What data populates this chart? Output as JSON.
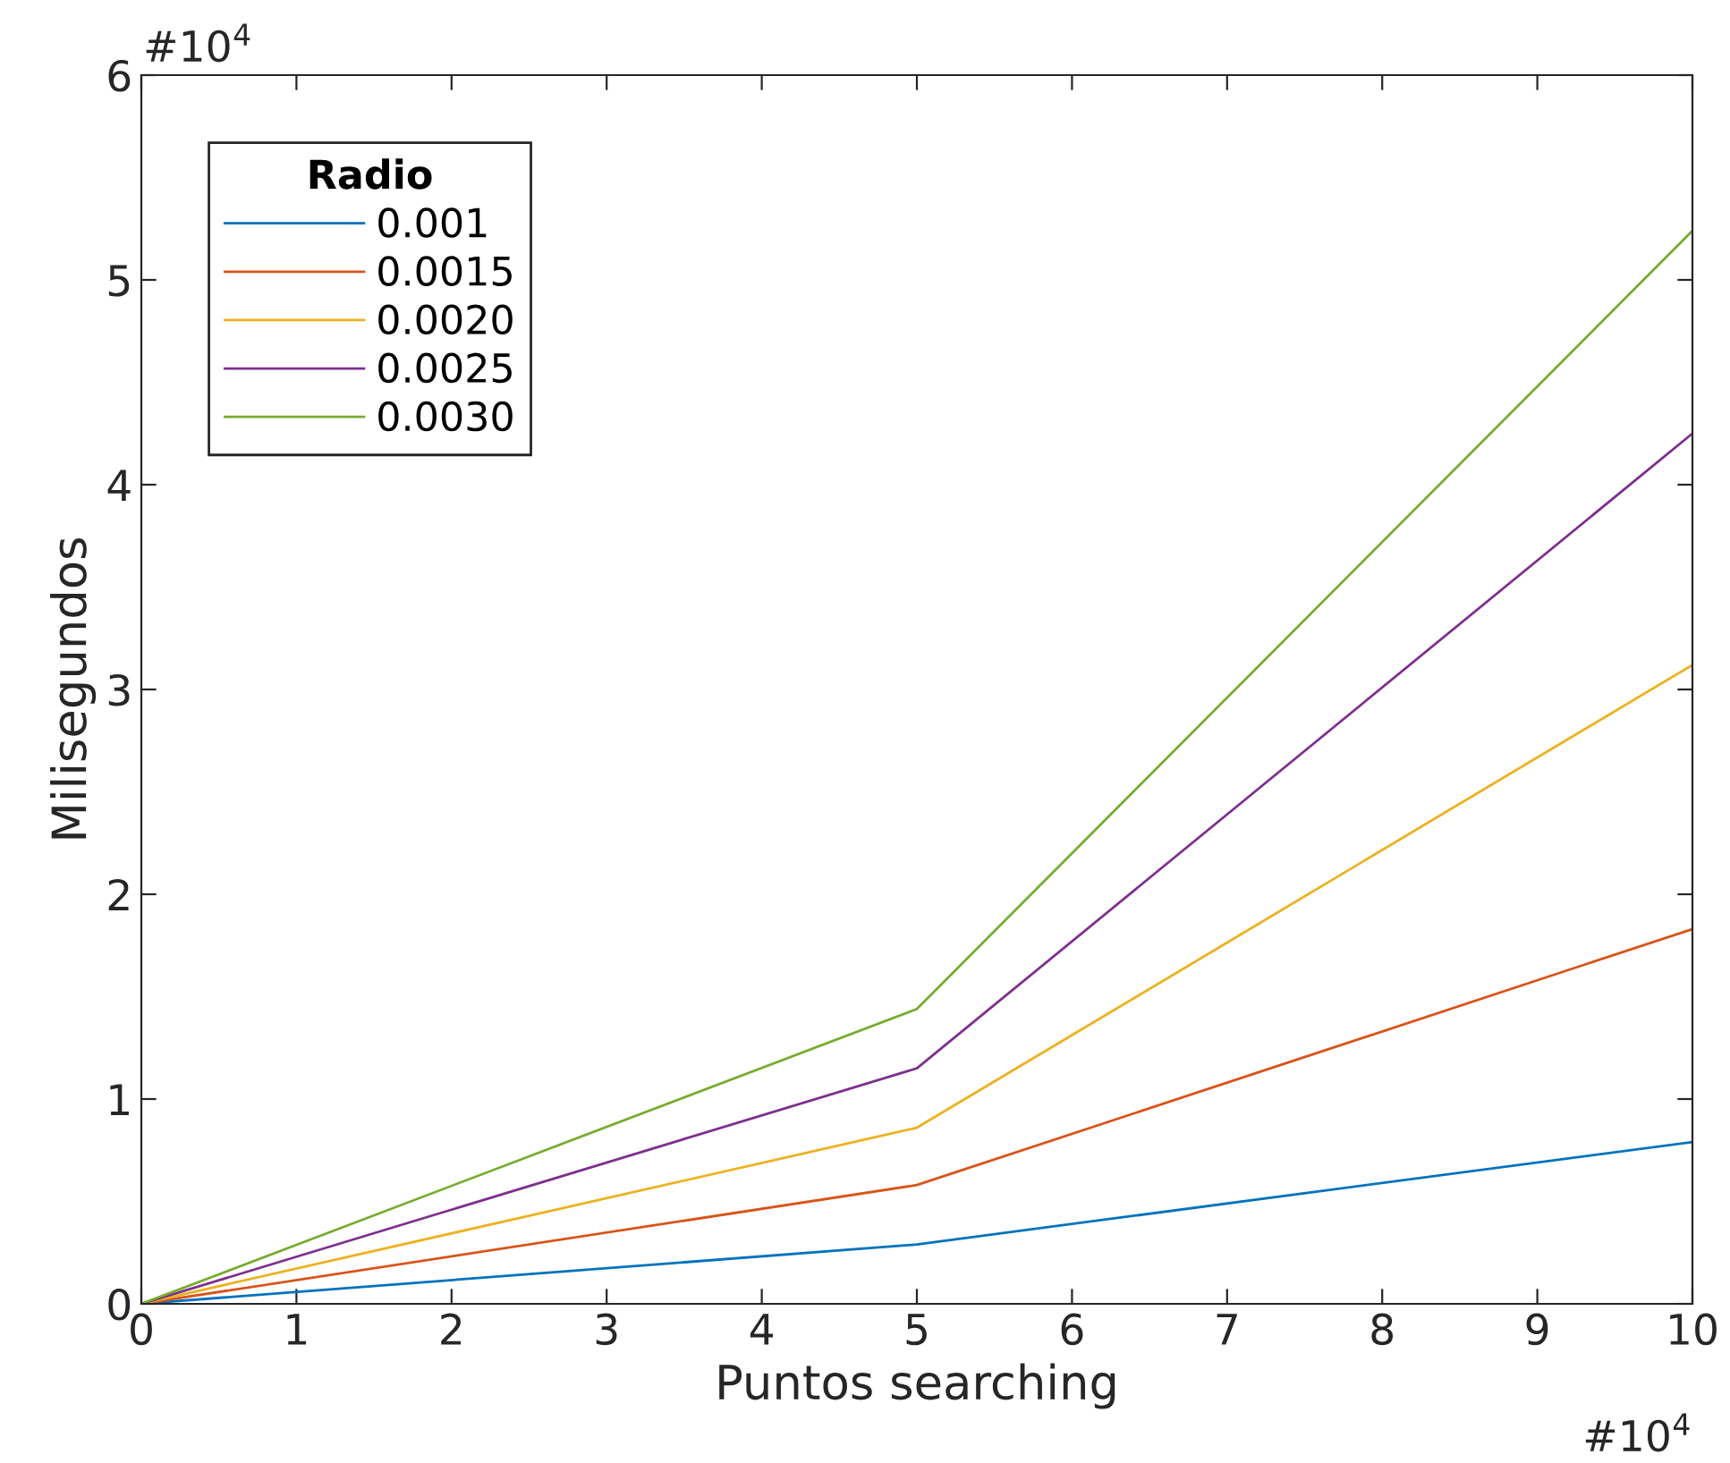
{
  "chart_data": {
    "type": "line",
    "xlabel": "Puntos searching",
    "ylabel": "Milisegundos",
    "legend_title": "Radio",
    "x": [
      0,
      5,
      10
    ],
    "series": [
      {
        "name": "0.001",
        "color": "#0072bd",
        "values": [
          0,
          0.29,
          0.79
        ]
      },
      {
        "name": "0.0015",
        "color": "#d95319",
        "values": [
          0,
          0.58,
          1.83
        ]
      },
      {
        "name": "0.0020",
        "color": "#edb120",
        "values": [
          0,
          0.86,
          3.12
        ]
      },
      {
        "name": "0.0025",
        "color": "#7e2f8e",
        "values": [
          0,
          1.15,
          4.25
        ]
      },
      {
        "name": "0.0030",
        "color": "#77ac30",
        "values": [
          0,
          1.44,
          5.24
        ]
      }
    ],
    "xlim": [
      0,
      10
    ],
    "ylim": [
      0,
      6
    ],
    "xticks": [
      0,
      1,
      2,
      3,
      4,
      5,
      6,
      7,
      8,
      9,
      10
    ],
    "yticks": [
      0,
      1,
      2,
      3,
      4,
      5,
      6
    ],
    "annotations": [
      "#10$^{4}$",
      "#10$^{4}$"
    ],
    "legend": "top left",
    "grid": false,
    "marker": "none",
    "line_style": "solid"
  }
}
